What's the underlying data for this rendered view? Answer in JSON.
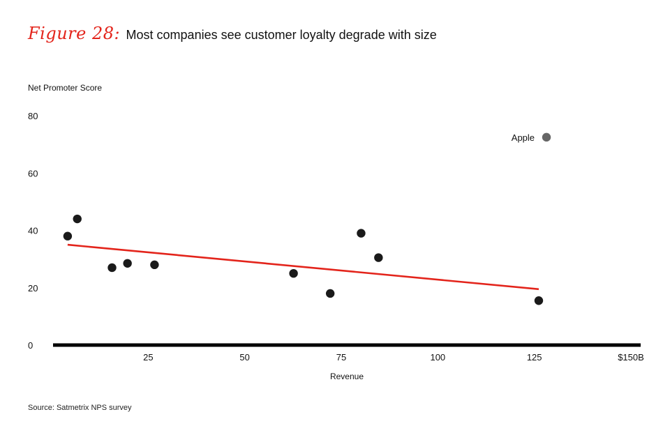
{
  "figure": {
    "label": "Figure 28:",
    "title": "Most companies see customer loyalty degrade with size"
  },
  "source": "Source: Satmetrix NPS survey",
  "colors": {
    "trend": "#e3241b",
    "point": "#1a1a1a",
    "highlight": "#666666",
    "axis": "#000000"
  },
  "chart_data": {
    "type": "scatter",
    "title": "Most companies see customer loyalty degrade with size",
    "xlabel": "Revenue",
    "ylabel": "Net Promoter Score",
    "xlim": [
      0,
      150
    ],
    "ylim": [
      0,
      80
    ],
    "x_ticks": [
      {
        "value": 25,
        "label": "25"
      },
      {
        "value": 50,
        "label": "50"
      },
      {
        "value": 75,
        "label": "75"
      },
      {
        "value": 100,
        "label": "100"
      },
      {
        "value": 125,
        "label": "125"
      },
      {
        "value": 150,
        "label": "$150B"
      }
    ],
    "y_ticks": [
      {
        "value": 0,
        "label": "0"
      },
      {
        "value": 20,
        "label": "20"
      },
      {
        "value": 40,
        "label": "40"
      },
      {
        "value": 60,
        "label": "60"
      },
      {
        "value": 80,
        "label": "80"
      }
    ],
    "points": [
      {
        "x": 4.5,
        "y": 38
      },
      {
        "x": 7,
        "y": 44
      },
      {
        "x": 16,
        "y": 27
      },
      {
        "x": 20,
        "y": 28.5
      },
      {
        "x": 27,
        "y": 28
      },
      {
        "x": 63,
        "y": 25
      },
      {
        "x": 72.5,
        "y": 18
      },
      {
        "x": 80.5,
        "y": 39
      },
      {
        "x": 85,
        "y": 30.5
      },
      {
        "x": 126.5,
        "y": 15.5
      }
    ],
    "highlight": {
      "label": "Apple",
      "x": 128.5,
      "y": 72.5
    },
    "trendline": {
      "x": [
        4.5,
        126.5
      ],
      "y": [
        35,
        19.5
      ]
    },
    "grid": false
  }
}
